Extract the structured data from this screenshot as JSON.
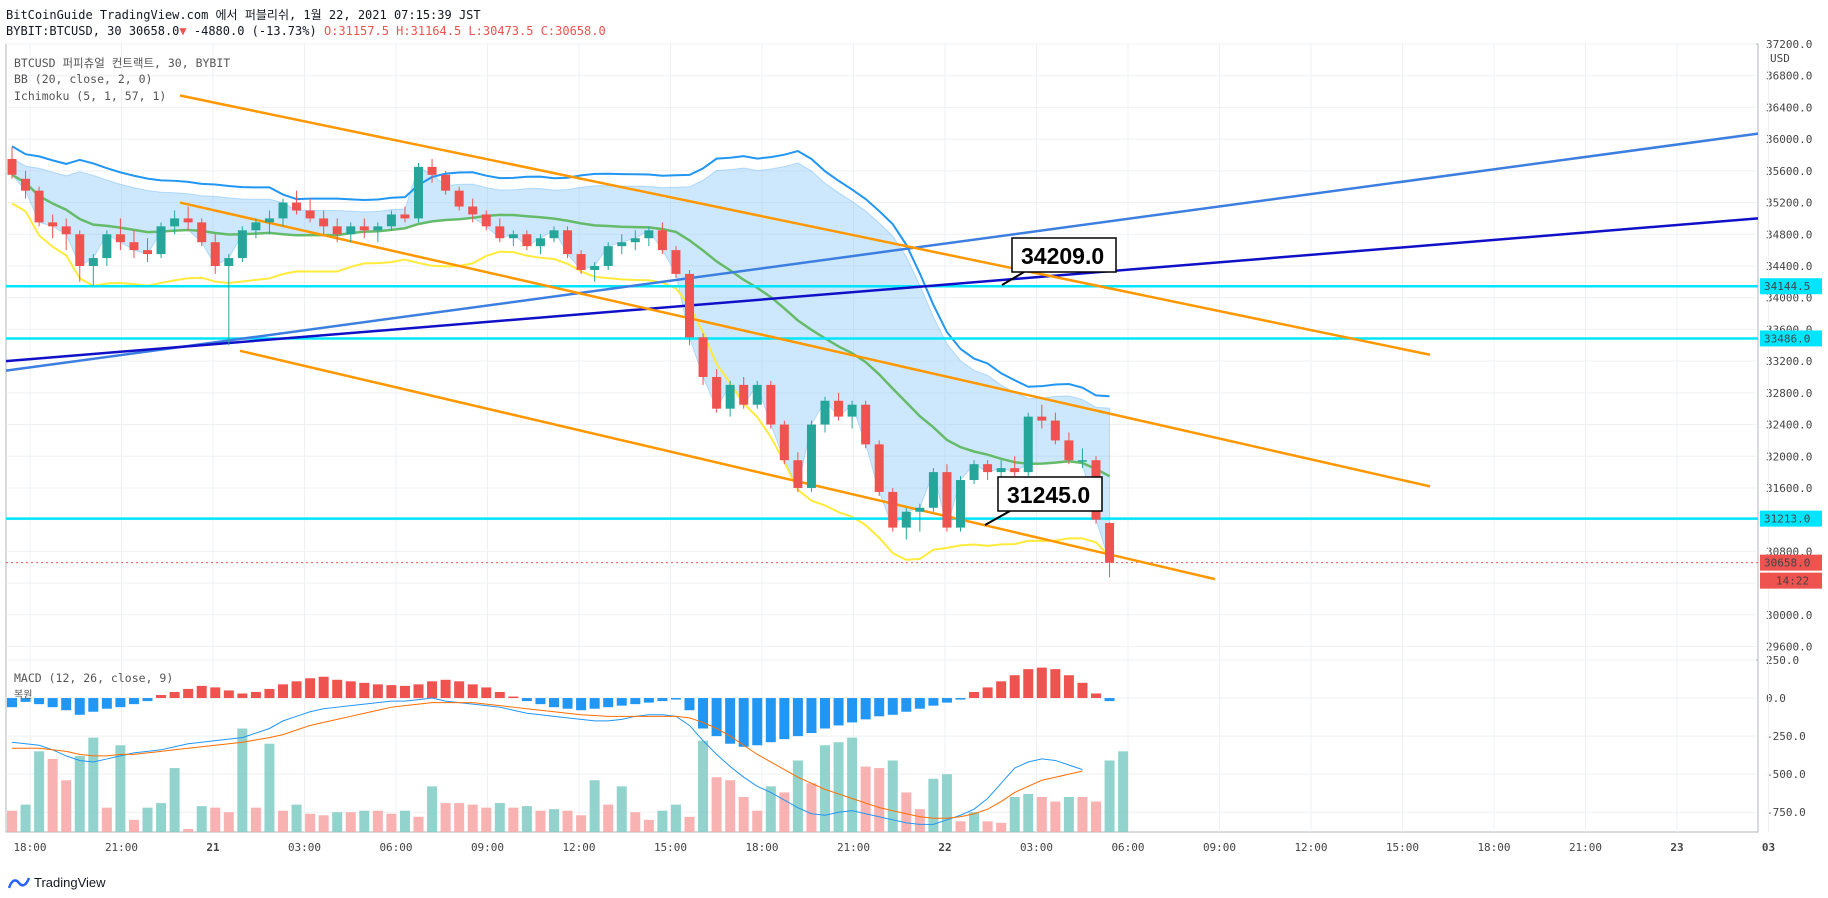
{
  "header": {
    "line1": "BitCoinGuide TradingView.com 에서 퍼블리쉬, 1월 22, 2021 07:15:39 JST",
    "symbol": "BYBIT:BTCUSD, 30",
    "last": "30658.0",
    "change": "-4880.0 (-13.73%)",
    "ohlc": "O:31157.5 H:31164.5 L:30473.5 C:30658.0"
  },
  "indicators": {
    "title": "BTCUSD 퍼피츄얼 컨트랙트, 30, BYBIT",
    "bb": "BB (20, close, 2, 0)",
    "ichimoku": "Ichimoku (5, 1, 57, 1)",
    "macd": "MACD (12, 26, close, 9)",
    "macd_sub": "복원"
  },
  "axis": {
    "currency": "USD",
    "countdown": "14:22"
  },
  "brand": "TradingView",
  "colors": {
    "up": "#26a69a",
    "down": "#ef5350",
    "channel": "#ff9800",
    "trend_light": "#3d7fe0",
    "trend_dark": "#1010c8",
    "horizontal": "#00e5ff",
    "bb_upper": "#2196f3",
    "bb_basis": "#66bb6a",
    "bb_lower": "#ffeb3b",
    "cloud": "#90caf9"
  },
  "chart_data": {
    "type": "candlestick",
    "x_tick_labels": [
      "18:00",
      "21:00",
      "21",
      "03:00",
      "06:00",
      "09:00",
      "12:00",
      "15:00",
      "18:00",
      "21:00",
      "22",
      "03:00",
      "06:00",
      "09:00",
      "12:00",
      "15:00",
      "18:00",
      "21:00",
      "23",
      "03"
    ],
    "price_tick_labels": [
      "37200.0",
      "36800.0",
      "36400.0",
      "36000.0",
      "35600.0",
      "35200.0",
      "34800.0",
      "34400.0",
      "34000.0",
      "33600.0",
      "33200.0",
      "32800.0",
      "32400.0",
      "32000.0",
      "31600.0",
      "31200.0",
      "30800.0",
      "30400.0",
      "30000.0",
      "29600.0"
    ],
    "macd_tick_labels": [
      "250.0",
      "0.0",
      "-250.0",
      "-500.0",
      "-750.0"
    ],
    "price_levels": [
      {
        "label": "34144.5",
        "kind": "horizontal-line"
      },
      {
        "label": "33486.0",
        "kind": "horizontal-line"
      },
      {
        "label": "31213.0",
        "kind": "horizontal-line"
      },
      {
        "label": "30658.0",
        "kind": "last-price"
      }
    ],
    "callouts": [
      "34209.0",
      "31245.0"
    ],
    "candles": [
      [
        35750,
        35900,
        35500,
        35550
      ],
      [
        35500,
        35600,
        35250,
        35350
      ],
      [
        35350,
        35400,
        34900,
        34950
      ],
      [
        34950,
        35050,
        34750,
        34900
      ],
      [
        34900,
        35000,
        34600,
        34800
      ],
      [
        34800,
        34850,
        34200,
        34400
      ],
      [
        34400,
        34550,
        34150,
        34500
      ],
      [
        34500,
        34850,
        34400,
        34800
      ],
      [
        34800,
        35000,
        34600,
        34700
      ],
      [
        34700,
        34850,
        34500,
        34600
      ],
      [
        34600,
        34750,
        34450,
        34550
      ],
      [
        34550,
        34950,
        34500,
        34900
      ],
      [
        34900,
        35100,
        34800,
        35000
      ],
      [
        35000,
        35150,
        34850,
        34950
      ],
      [
        34950,
        35000,
        34650,
        34700
      ],
      [
        34700,
        34800,
        34300,
        34400
      ],
      [
        34400,
        34550,
        33400,
        34500
      ],
      [
        34500,
        34900,
        34450,
        34850
      ],
      [
        34850,
        35000,
        34750,
        34950
      ],
      [
        34950,
        35100,
        34800,
        35000
      ],
      [
        35000,
        35250,
        34900,
        35200
      ],
      [
        35200,
        35350,
        35050,
        35100
      ],
      [
        35100,
        35250,
        34950,
        35000
      ],
      [
        35000,
        35100,
        34800,
        34900
      ],
      [
        34900,
        35000,
        34700,
        34800
      ],
      [
        34800,
        34950,
        34700,
        34900
      ],
      [
        34900,
        35000,
        34750,
        34850
      ],
      [
        34850,
        34950,
        34700,
        34900
      ],
      [
        34900,
        35100,
        34850,
        35050
      ],
      [
        35050,
        35150,
        34950,
        35000
      ],
      [
        35000,
        35700,
        34950,
        35650
      ],
      [
        35650,
        35750,
        35450,
        35550
      ],
      [
        35550,
        35600,
        35300,
        35350
      ],
      [
        35350,
        35400,
        35100,
        35150
      ],
      [
        35150,
        35250,
        34950,
        35050
      ],
      [
        35050,
        35100,
        34850,
        34900
      ],
      [
        34900,
        35000,
        34700,
        34750
      ],
      [
        34750,
        34850,
        34650,
        34800
      ],
      [
        34800,
        34850,
        34600,
        34650
      ],
      [
        34650,
        34800,
        34550,
        34750
      ],
      [
        34750,
        34900,
        34700,
        34850
      ],
      [
        34850,
        34900,
        34500,
        34550
      ],
      [
        34550,
        34600,
        34300,
        34350
      ],
      [
        34350,
        34450,
        34200,
        34400
      ],
      [
        34400,
        34700,
        34350,
        34650
      ],
      [
        34650,
        34800,
        34550,
        34700
      ],
      [
        34700,
        34850,
        34600,
        34750
      ],
      [
        34750,
        34900,
        34650,
        34850
      ],
      [
        34850,
        34950,
        34550,
        34600
      ],
      [
        34600,
        34650,
        34250,
        34300
      ],
      [
        34300,
        34350,
        33400,
        33500
      ],
      [
        33500,
        33550,
        32900,
        33000
      ],
      [
        33000,
        33100,
        32550,
        32600
      ],
      [
        32600,
        32950,
        32500,
        32900
      ],
      [
        32900,
        33000,
        32600,
        32650
      ],
      [
        32650,
        32950,
        32600,
        32900
      ],
      [
        32900,
        32950,
        32350,
        32400
      ],
      [
        32400,
        32450,
        31900,
        31950
      ],
      [
        31950,
        32050,
        31550,
        31600
      ],
      [
        31600,
        32450,
        31550,
        32400
      ],
      [
        32400,
        32750,
        32300,
        32700
      ],
      [
        32700,
        32800,
        32450,
        32500
      ],
      [
        32500,
        32700,
        32350,
        32650
      ],
      [
        32650,
        32700,
        32100,
        32150
      ],
      [
        32150,
        32200,
        31500,
        31550
      ],
      [
        31550,
        31600,
        31050,
        31100
      ],
      [
        31100,
        31350,
        30950,
        31300
      ],
      [
        31300,
        31400,
        31050,
        31350
      ],
      [
        31350,
        31850,
        31300,
        31800
      ],
      [
        31800,
        31900,
        31050,
        31100
      ],
      [
        31100,
        31750,
        31050,
        31700
      ],
      [
        31700,
        31950,
        31650,
        31900
      ],
      [
        31900,
        31950,
        31700,
        31800
      ],
      [
        31800,
        31950,
        31700,
        31850
      ],
      [
        31850,
        32000,
        31750,
        31800
      ],
      [
        31800,
        32550,
        31750,
        32500
      ],
      [
        32500,
        32650,
        32350,
        32450
      ],
      [
        32450,
        32550,
        32150,
        32200
      ],
      [
        32200,
        32300,
        31900,
        31950
      ],
      [
        31950,
        32100,
        31850,
        31950
      ],
      [
        31950,
        32000,
        31150,
        31200
      ],
      [
        31157.5,
        31164.5,
        30473.5,
        30658
      ]
    ],
    "macd_histogram": [
      -60,
      -25,
      -40,
      -60,
      -80,
      -110,
      -90,
      -70,
      -60,
      -40,
      -20,
      20,
      40,
      60,
      80,
      70,
      50,
      30,
      40,
      60,
      90,
      110,
      130,
      140,
      120,
      110,
      100,
      90,
      85,
      80,
      90,
      110,
      120,
      110,
      90,
      70,
      40,
      10,
      -20,
      -40,
      -60,
      -70,
      -80,
      -70,
      -60,
      -50,
      -40,
      -30,
      -20,
      -10,
      -80,
      -200,
      -250,
      -300,
      -320,
      -310,
      -290,
      -270,
      -250,
      -230,
      -200,
      -180,
      -160,
      -140,
      -120,
      -110,
      -90,
      -70,
      -50,
      -30,
      -10,
      40,
      70,
      110,
      150,
      190,
      200,
      190,
      150,
      100,
      30,
      -20
    ],
    "macd_volume_bars": [
      -740,
      -700,
      -350,
      -400,
      -540,
      -380,
      -260,
      -720,
      -310,
      -800,
      -720,
      -690,
      -460,
      -860,
      -710,
      -720,
      -750,
      -200,
      -720,
      -300,
      -740,
      -700,
      -760,
      -770,
      -750,
      -750,
      -740,
      -740,
      -760,
      -740,
      -780,
      -580,
      -690,
      -690,
      -700,
      -720,
      -690,
      -720,
      -710,
      -740,
      -730,
      -740,
      -770,
      -540,
      -700,
      -580,
      -750,
      -800,
      -740,
      -700,
      -780,
      -280,
      -520,
      -540,
      -650,
      -740,
      -580,
      -620,
      -410,
      -560,
      -310,
      -290,
      -260,
      -450,
      -460,
      -410,
      -620,
      -730,
      -530,
      -500,
      -810,
      -750,
      -810,
      -820,
      -650,
      -630,
      -650,
      -680,
      -650,
      -650,
      -680,
      -410,
      -350
    ],
    "macd_line": [
      -290,
      -300,
      -310,
      -340,
      -380,
      -410,
      -420,
      -400,
      -380,
      -360,
      -350,
      -340,
      -320,
      -300,
      -290,
      -280,
      -270,
      -260,
      -230,
      -200,
      -150,
      -120,
      -90,
      -70,
      -60,
      -50,
      -40,
      -30,
      -20,
      -20,
      -10,
      0,
      -20,
      -30,
      -40,
      -50,
      -60,
      -80,
      -100,
      -110,
      -120,
      -130,
      -140,
      -150,
      -150,
      -140,
      -120,
      -110,
      -110,
      -120,
      -180,
      -280,
      -370,
      -450,
      -520,
      -580,
      -620,
      -670,
      -720,
      -760,
      -770,
      -750,
      -740,
      -760,
      -780,
      -800,
      -820,
      -830,
      -830,
      -800,
      -770,
      -730,
      -660,
      -560,
      -460,
      -420,
      -400,
      -410,
      -440,
      -470
    ],
    "signal_line": [
      -330,
      -330,
      -330,
      -340,
      -350,
      -370,
      -380,
      -380,
      -370,
      -370,
      -360,
      -350,
      -340,
      -330,
      -320,
      -310,
      -300,
      -290,
      -275,
      -260,
      -240,
      -210,
      -180,
      -160,
      -140,
      -120,
      -100,
      -80,
      -60,
      -50,
      -40,
      -30,
      -30,
      -30,
      -30,
      -40,
      -50,
      -60,
      -70,
      -80,
      -90,
      -100,
      -110,
      -115,
      -120,
      -120,
      -120,
      -120,
      -120,
      -120,
      -130,
      -160,
      -200,
      -250,
      -310,
      -370,
      -420,
      -470,
      -520,
      -560,
      -600,
      -630,
      -660,
      -690,
      -720,
      -740,
      -760,
      -780,
      -790,
      -790,
      -780,
      -760,
      -730,
      -680,
      -620,
      -580,
      -540,
      -520,
      -500,
      -480
    ]
  }
}
